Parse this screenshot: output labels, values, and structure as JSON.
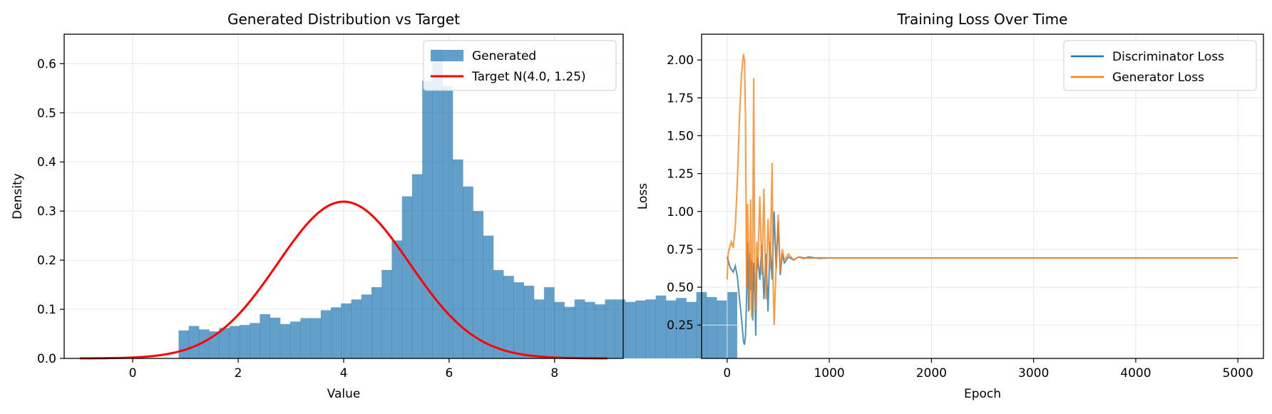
{
  "colors": {
    "histogram": "#1f77b4",
    "target_curve": "#ff0000",
    "discriminator": "#1f77b4",
    "generator": "#ff7f0e",
    "grid": "#e6e6e6",
    "axes": "#000000"
  },
  "chart_data": [
    {
      "type": "histogram",
      "title": "Generated Distribution vs Target",
      "xlabel": "Value",
      "ylabel": "Density",
      "xlim": [
        -1.3,
        9.3
      ],
      "ylim": [
        0,
        0.66
      ],
      "xticks": [
        0,
        2,
        4,
        6,
        8
      ],
      "yticks": [
        0.0,
        0.1,
        0.2,
        0.3,
        0.4,
        0.5,
        0.6
      ],
      "ytick_labels": [
        "0.0",
        "0.1",
        "0.2",
        "0.3",
        "0.4",
        "0.5",
        "0.6"
      ],
      "grid": true,
      "legend_position": "upper right",
      "histogram": {
        "name": "Generated",
        "bin_start": 0.87,
        "bin_width": 0.1925,
        "values": [
          0.057,
          0.066,
          0.059,
          0.055,
          0.062,
          0.066,
          0.068,
          0.072,
          0.09,
          0.083,
          0.07,
          0.075,
          0.082,
          0.082,
          0.098,
          0.104,
          0.112,
          0.12,
          0.13,
          0.145,
          0.18,
          0.24,
          0.33,
          0.375,
          0.565,
          0.63,
          0.555,
          0.405,
          0.35,
          0.3,
          0.25,
          0.18,
          0.168,
          0.155,
          0.148,
          0.12,
          0.145,
          0.115,
          0.105,
          0.12,
          0.115,
          0.11,
          0.12,
          0.12,
          0.115,
          0.118,
          0.12,
          0.128,
          0.118,
          0.123,
          0.115,
          0.135,
          0.125,
          0.118,
          0.135
        ]
      },
      "target": {
        "name": "Target N(4.0, 1.25)",
        "mean": 4.0,
        "std": 1.25,
        "x_range": [
          -1.0,
          9.0
        ]
      }
    },
    {
      "type": "line",
      "title": "Training Loss Over Time",
      "xlabel": "Epoch",
      "ylabel": "Loss",
      "xlim": [
        -250,
        5250
      ],
      "ylim": [
        0.03,
        2.17
      ],
      "xticks": [
        0,
        1000,
        2000,
        3000,
        4000,
        5000
      ],
      "yticks": [
        0.25,
        0.5,
        0.75,
        1.0,
        1.25,
        1.5,
        1.75,
        2.0
      ],
      "ytick_labels": [
        "0.25",
        "0.50",
        "0.75",
        "1.00",
        "1.25",
        "1.50",
        "1.75",
        "2.00"
      ],
      "grid": true,
      "legend_position": "upper right",
      "series": [
        {
          "name": "Discriminator Loss",
          "x": [
            0,
            30,
            60,
            80,
            100,
            120,
            140,
            150,
            160,
            170,
            180,
            190,
            200,
            210,
            220,
            230,
            240,
            250,
            260,
            270,
            280,
            290,
            300,
            320,
            340,
            360,
            380,
            400,
            420,
            440,
            460,
            480,
            500,
            520,
            540,
            560,
            600,
            650,
            700,
            750,
            800,
            900,
            1000,
            1500,
            2000,
            2500,
            3000,
            3500,
            4000,
            4500,
            5000
          ],
          "y": [
            0.7,
            0.63,
            0.6,
            0.64,
            0.57,
            0.43,
            0.3,
            0.22,
            0.14,
            0.12,
            0.18,
            0.42,
            0.8,
            0.34,
            0.72,
            0.48,
            0.68,
            0.28,
            0.66,
            0.5,
            0.18,
            0.62,
            0.7,
            0.55,
            0.78,
            0.42,
            0.72,
            0.34,
            0.8,
            0.55,
            1.0,
            0.62,
            0.93,
            0.58,
            0.72,
            0.66,
            0.7,
            0.68,
            0.7,
            0.69,
            0.7,
            0.69,
            0.693,
            0.693,
            0.693,
            0.693,
            0.693,
            0.693,
            0.693,
            0.693,
            0.693
          ]
        },
        {
          "name": "Generator Loss",
          "x": [
            0,
            10,
            20,
            40,
            60,
            80,
            100,
            120,
            140,
            160,
            170,
            180,
            190,
            200,
            210,
            220,
            230,
            240,
            250,
            260,
            270,
            280,
            290,
            300,
            320,
            340,
            360,
            380,
            400,
            420,
            440,
            450,
            460,
            480,
            500,
            520,
            540,
            560,
            600,
            650,
            700,
            800,
            900,
            1000,
            1500,
            2000,
            2500,
            3000,
            3500,
            4000,
            4500,
            5000
          ],
          "y": [
            0.55,
            0.72,
            0.75,
            0.8,
            0.76,
            0.9,
            1.2,
            1.6,
            1.9,
            2.04,
            2.0,
            1.6,
            0.5,
            1.05,
            0.75,
            0.35,
            1.08,
            0.3,
            0.72,
            1.88,
            0.58,
            0.35,
            0.8,
            0.62,
            1.1,
            0.58,
            1.15,
            0.42,
            0.95,
            0.62,
            1.32,
            0.55,
            0.25,
            0.65,
            0.98,
            0.6,
            0.75,
            0.68,
            0.72,
            0.68,
            0.7,
            0.69,
            0.695,
            0.693,
            0.693,
            0.693,
            0.693,
            0.693,
            0.693,
            0.693,
            0.693,
            0.693
          ]
        }
      ]
    }
  ]
}
